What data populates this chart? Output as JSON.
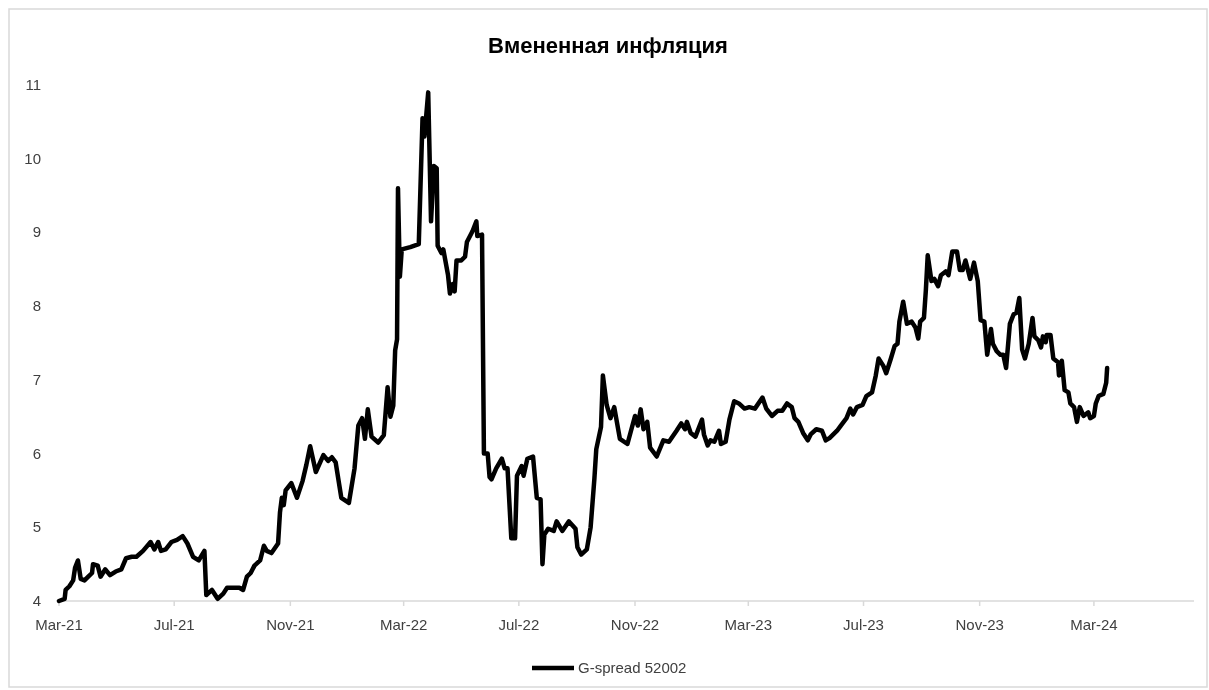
{
  "chart_data": {
    "type": "line",
    "title": "Вмененная инфляция",
    "legend": "bottom",
    "grid": false,
    "line_style": "solid",
    "marker": "none",
    "xlim": [
      "2021-03-01",
      "2024-06-15"
    ],
    "xticks": [
      {
        "value": "2021-03-01",
        "label": "Mar-21"
      },
      {
        "value": "2021-07-01",
        "label": "Jul-21"
      },
      {
        "value": "2021-11-01",
        "label": "Nov-21"
      },
      {
        "value": "2022-03-01",
        "label": "Mar-22"
      },
      {
        "value": "2022-07-01",
        "label": "Jul-22"
      },
      {
        "value": "2022-11-01",
        "label": "Nov-22"
      },
      {
        "value": "2023-03-01",
        "label": "Mar-23"
      },
      {
        "value": "2023-07-01",
        "label": "Jul-23"
      },
      {
        "value": "2023-11-01",
        "label": "Nov-23"
      },
      {
        "value": "2024-03-01",
        "label": "Mar-24"
      }
    ],
    "ylim": [
      4,
      11
    ],
    "yticks": [
      4,
      5,
      6,
      7,
      8,
      9,
      10,
      11
    ],
    "x": [
      "2021-03-01",
      "2021-03-07",
      "2021-03-08",
      "2021-03-12",
      "2021-03-16",
      "2021-03-18",
      "2021-03-21",
      "2021-03-24",
      "2021-03-28",
      "2021-04-01",
      "2021-04-05",
      "2021-04-06",
      "2021-04-11",
      "2021-04-14",
      "2021-04-19",
      "2021-04-24",
      "2021-04-30",
      "2021-05-06",
      "2021-05-11",
      "2021-05-17",
      "2021-05-22",
      "2021-05-29",
      "2021-06-06",
      "2021-06-10",
      "2021-06-14",
      "2021-06-17",
      "2021-06-22",
      "2021-06-28",
      "2021-07-04",
      "2021-07-10",
      "2021-07-15",
      "2021-07-21",
      "2021-07-27",
      "2021-08-02",
      "2021-08-04",
      "2021-08-10",
      "2021-08-16",
      "2021-08-22",
      "2021-08-26",
      "2021-09-08",
      "2021-09-12",
      "2021-09-16",
      "2021-09-20",
      "2021-09-24",
      "2021-09-30",
      "2021-10-04",
      "2021-10-07",
      "2021-10-12",
      "2021-10-19",
      "2021-10-21",
      "2021-10-23",
      "2021-10-25",
      "2021-10-27",
      "2021-11-02",
      "2021-11-08",
      "2021-11-14",
      "2021-11-18",
      "2021-11-22",
      "2021-11-28",
      "2021-12-06",
      "2021-12-11",
      "2021-12-15",
      "2021-12-19",
      "2021-12-25",
      "2022-01-02",
      "2022-01-08",
      "2022-01-12",
      "2022-01-16",
      "2022-01-19",
      "2022-01-22",
      "2022-01-26",
      "2022-02-02",
      "2022-02-08",
      "2022-02-12",
      "2022-02-15",
      "2022-02-18",
      "2022-02-20",
      "2022-02-22",
      "2022-02-23",
      "2022-02-25",
      "2022-02-27",
      "2022-03-08",
      "2022-03-17",
      "2022-03-21",
      "2022-03-23",
      "2022-03-27",
      "2022-03-30",
      "2022-04-02",
      "2022-04-05",
      "2022-04-06",
      "2022-04-10",
      "2022-04-12",
      "2022-04-17",
      "2022-04-19",
      "2022-04-22",
      "2022-04-24",
      "2022-04-26",
      "2022-05-01",
      "2022-05-05",
      "2022-05-07",
      "2022-05-13",
      "2022-05-17",
      "2022-05-18",
      "2022-05-23",
      "2022-05-25",
      "2022-05-29",
      "2022-05-31",
      "2022-06-02",
      "2022-06-07",
      "2022-06-13",
      "2022-06-16",
      "2022-06-19",
      "2022-06-23",
      "2022-06-27",
      "2022-06-29",
      "2022-07-04",
      "2022-07-06",
      "2022-07-10",
      "2022-07-16",
      "2022-07-20",
      "2022-07-24",
      "2022-07-26",
      "2022-07-28",
      "2022-08-01",
      "2022-08-07",
      "2022-08-10",
      "2022-08-16",
      "2022-08-23",
      "2022-08-30",
      "2022-09-01",
      "2022-09-05",
      "2022-09-11",
      "2022-09-15",
      "2022-09-19",
      "2022-09-21",
      "2022-09-26",
      "2022-09-28",
      "2022-10-02",
      "2022-10-06",
      "2022-10-10",
      "2022-10-16",
      "2022-10-24",
      "2022-11-01",
      "2022-11-04",
      "2022-11-07",
      "2022-11-10",
      "2022-11-14",
      "2022-11-17",
      "2022-11-24",
      "2022-12-01",
      "2022-12-07",
      "2022-12-15",
      "2022-12-20",
      "2022-12-24",
      "2022-12-26",
      "2022-12-30",
      "2023-01-04",
      "2023-01-11",
      "2023-01-13",
      "2023-01-17",
      "2023-01-20",
      "2023-01-24",
      "2023-01-29",
      "2023-01-31",
      "2023-02-05",
      "2023-02-09",
      "2023-02-14",
      "2023-02-19",
      "2023-02-25",
      "2023-03-02",
      "2023-03-08",
      "2023-03-16",
      "2023-03-20",
      "2023-03-26",
      "2023-04-01",
      "2023-04-06",
      "2023-04-11",
      "2023-04-16",
      "2023-04-19",
      "2023-04-23",
      "2023-04-28",
      "2023-05-03",
      "2023-05-06",
      "2023-05-12",
      "2023-05-18",
      "2023-05-22",
      "2023-05-26",
      "2023-06-03",
      "2023-06-07",
      "2023-06-13",
      "2023-06-17",
      "2023-06-20",
      "2023-06-24",
      "2023-06-30",
      "2023-07-04",
      "2023-07-10",
      "2023-07-14",
      "2023-07-17",
      "2023-07-22",
      "2023-07-25",
      "2023-07-30",
      "2023-08-03",
      "2023-08-06",
      "2023-08-08",
      "2023-08-12",
      "2023-08-16",
      "2023-08-21",
      "2023-08-25",
      "2023-08-28",
      "2023-08-30",
      "2023-09-03",
      "2023-09-05",
      "2023-09-07",
      "2023-09-11",
      "2023-09-14",
      "2023-09-18",
      "2023-09-21",
      "2023-09-26",
      "2023-09-29",
      "2023-10-03",
      "2023-10-08",
      "2023-10-11",
      "2023-10-14",
      "2023-10-17",
      "2023-10-22",
      "2023-10-26",
      "2023-10-30",
      "2023-11-02",
      "2023-11-06",
      "2023-11-09",
      "2023-11-13",
      "2023-11-15",
      "2023-11-19",
      "2023-11-23",
      "2023-11-26",
      "2023-11-29",
      "2023-12-03",
      "2023-12-07",
      "2023-12-10",
      "2023-12-13",
      "2023-12-16",
      "2023-12-19",
      "2023-12-23",
      "2023-12-27",
      "2023-12-29",
      "2024-01-02",
      "2024-01-05",
      "2024-01-07",
      "2024-01-10",
      "2024-01-11",
      "2024-01-15",
      "2024-01-18",
      "2024-01-23",
      "2024-01-24",
      "2024-01-27",
      "2024-01-30",
      "2024-02-03",
      "2024-02-05",
      "2024-02-09",
      "2024-02-12",
      "2024-02-15",
      "2024-02-19",
      "2024-02-24",
      "2024-02-26",
      "2024-03-01",
      "2024-03-03",
      "2024-03-06",
      "2024-03-11",
      "2024-03-14",
      "2024-03-15"
    ],
    "series": [
      {
        "name": "G-spread 52002",
        "color": "#000000",
        "values": [
          4.0,
          4.03,
          4.15,
          4.2,
          4.28,
          4.45,
          4.55,
          4.3,
          4.28,
          4.33,
          4.38,
          4.5,
          4.48,
          4.33,
          4.43,
          4.35,
          4.4,
          4.43,
          4.58,
          4.6,
          4.6,
          4.68,
          4.8,
          4.7,
          4.8,
          4.68,
          4.7,
          4.8,
          4.83,
          4.88,
          4.78,
          4.6,
          4.55,
          4.68,
          4.08,
          4.15,
          4.03,
          4.1,
          4.18,
          4.18,
          4.15,
          4.33,
          4.38,
          4.48,
          4.55,
          4.75,
          4.68,
          4.65,
          4.78,
          5.2,
          5.4,
          5.3,
          5.5,
          5.6,
          5.4,
          5.63,
          5.85,
          6.1,
          5.75,
          5.98,
          5.9,
          5.95,
          5.88,
          5.4,
          5.33,
          5.8,
          6.38,
          6.48,
          6.2,
          6.6,
          6.23,
          6.15,
          6.25,
          6.9,
          6.5,
          6.65,
          7.4,
          7.55,
          9.6,
          8.4,
          8.77,
          8.8,
          8.84,
          10.55,
          10.3,
          10.9,
          9.15,
          9.9,
          9.87,
          8.82,
          8.72,
          8.77,
          8.42,
          8.17,
          8.3,
          8.2,
          8.62,
          8.62,
          8.67,
          8.87,
          9.02,
          9.15,
          8.95,
          8.97,
          6.0,
          6.0,
          5.68,
          5.65,
          5.8,
          5.93,
          5.8,
          5.8,
          4.85,
          4.85,
          5.7,
          5.83,
          5.7,
          5.93,
          5.96,
          5.4,
          5.38,
          4.5,
          4.9,
          4.98,
          4.95,
          5.08,
          4.95,
          5.08,
          4.98,
          4.73,
          4.63,
          4.7,
          5.0,
          5.66,
          6.06,
          6.36,
          7.06,
          6.66,
          6.48,
          6.63,
          6.2,
          6.13,
          6.51,
          6.38,
          6.6,
          6.33,
          6.43,
          6.08,
          5.96,
          6.18,
          6.16,
          6.31,
          6.41,
          6.33,
          6.43,
          6.28,
          6.23,
          6.46,
          6.26,
          6.11,
          6.18,
          6.16,
          6.31,
          6.13,
          6.16,
          6.46,
          6.71,
          6.68,
          6.61,
          6.63,
          6.61,
          6.76,
          6.61,
          6.51,
          6.58,
          6.58,
          6.68,
          6.63,
          6.48,
          6.43,
          6.28,
          6.18,
          6.26,
          6.33,
          6.31,
          6.18,
          6.21,
          6.31,
          6.38,
          6.48,
          6.61,
          6.53,
          6.63,
          6.66,
          6.78,
          6.83,
          7.06,
          7.29,
          7.19,
          7.09,
          7.29,
          7.46,
          7.49,
          7.79,
          8.06,
          7.76,
          7.79,
          7.71,
          7.56,
          7.79,
          7.84,
          8.21,
          8.69,
          8.34,
          8.37,
          8.27,
          8.42,
          8.47,
          8.42,
          8.74,
          8.74,
          8.49,
          8.49,
          8.62,
          8.37,
          8.59,
          8.34,
          7.81,
          7.79,
          7.34,
          7.69,
          7.49,
          7.39,
          7.34,
          7.34,
          7.16,
          7.76,
          7.89,
          7.91,
          8.11,
          7.41,
          7.29,
          7.49,
          7.84,
          7.59,
          7.54,
          7.44,
          7.59,
          7.51,
          7.61,
          7.61,
          7.29,
          7.24,
          7.06,
          7.26,
          6.86,
          6.83,
          6.68,
          6.63,
          6.43,
          6.63,
          6.51,
          6.56,
          6.48,
          6.51,
          6.68,
          6.78,
          6.81,
          6.96,
          7.16
        ]
      }
    ]
  }
}
